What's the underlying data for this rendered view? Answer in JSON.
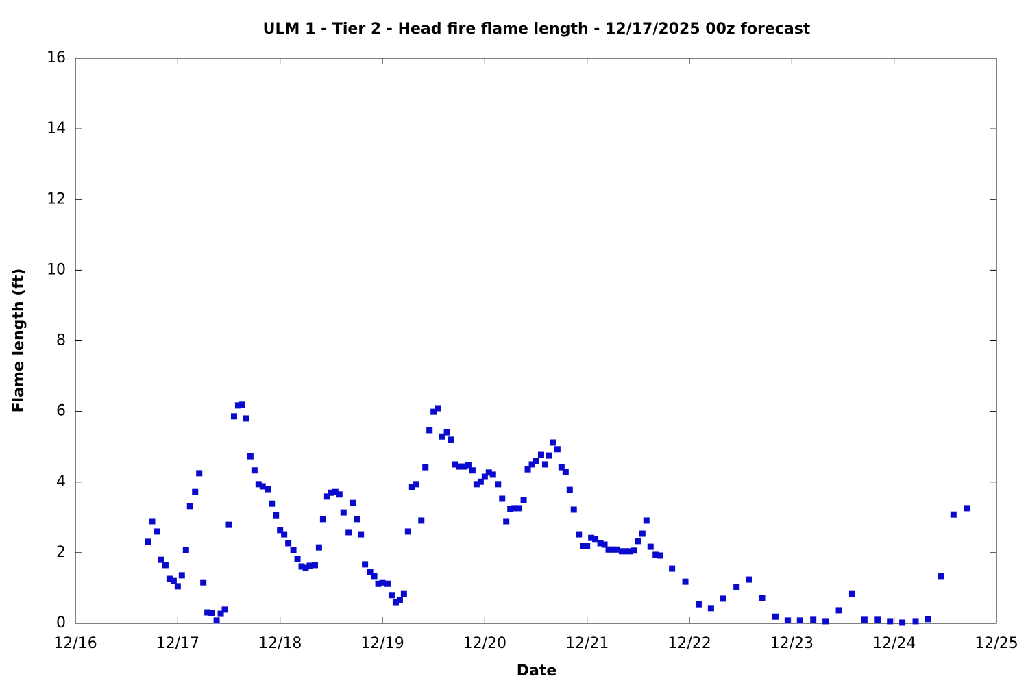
{
  "chart_data": {
    "type": "scatter",
    "title": "ULM 1 - Tier 2 - Head fire flame length - 12/17/2025 00z forecast",
    "x_label": "Date",
    "y_label": "Flame length (ft)",
    "color": "#0a0acd",
    "xlim": [
      16,
      25
    ],
    "xticks": [
      {
        "value": 16,
        "label": "12/16"
      },
      {
        "value": 17,
        "label": "12/17"
      },
      {
        "value": 18,
        "label": "12/18"
      },
      {
        "value": 19,
        "label": "12/19"
      },
      {
        "value": 20,
        "label": "12/20"
      },
      {
        "value": 21,
        "label": "12/21"
      },
      {
        "value": 22,
        "label": "12/22"
      },
      {
        "value": 23,
        "label": "12/23"
      },
      {
        "value": 24,
        "label": "12/24"
      },
      {
        "value": 25,
        "label": "12/25"
      }
    ],
    "ylim": [
      0,
      16
    ],
    "yticks": [
      0,
      2,
      4,
      6,
      8,
      10,
      12,
      14,
      16
    ],
    "x": [
      16.71,
      16.75,
      16.8,
      16.84,
      16.88,
      16.92,
      16.96,
      17.0,
      17.04,
      17.08,
      17.12,
      17.17,
      17.21,
      17.25,
      17.29,
      17.33,
      17.38,
      17.42,
      17.46,
      17.5,
      17.55,
      17.59,
      17.63,
      17.67,
      17.71,
      17.75,
      17.79,
      17.83,
      17.88,
      17.92,
      17.96,
      18.0,
      18.04,
      18.08,
      18.13,
      18.17,
      18.21,
      18.25,
      18.29,
      18.34,
      18.38,
      18.42,
      18.46,
      18.5,
      18.54,
      18.58,
      18.62,
      18.67,
      18.71,
      18.75,
      18.79,
      18.83,
      18.88,
      18.92,
      18.96,
      19.0,
      19.05,
      19.09,
      19.13,
      19.17,
      19.21,
      19.25,
      19.29,
      19.33,
      19.38,
      19.42,
      19.46,
      19.5,
      19.54,
      19.58,
      19.63,
      19.67,
      19.71,
      19.75,
      19.8,
      19.84,
      19.88,
      19.92,
      19.96,
      20.0,
      20.04,
      20.08,
      20.13,
      20.17,
      20.21,
      20.25,
      20.29,
      20.33,
      20.38,
      20.42,
      20.46,
      20.5,
      20.55,
      20.59,
      20.63,
      20.67,
      20.71,
      20.75,
      20.79,
      20.83,
      20.87,
      20.92,
      20.96,
      21.0,
      21.04,
      21.08,
      21.13,
      21.17,
      21.21,
      21.25,
      21.29,
      21.34,
      21.38,
      21.42,
      21.46,
      21.5,
      21.54,
      21.58,
      21.62,
      21.67,
      21.71,
      21.83,
      21.96,
      22.09,
      22.21,
      22.33,
      22.46,
      22.58,
      22.71,
      22.84,
      22.96,
      23.08,
      23.21,
      23.33,
      23.46,
      23.59,
      23.71,
      23.84,
      23.96,
      24.08,
      24.21,
      24.33,
      24.46,
      24.58,
      24.71
    ],
    "values": [
      2.31,
      2.89,
      2.6,
      1.8,
      1.65,
      1.26,
      1.2,
      1.05,
      1.36,
      2.08,
      3.32,
      3.72,
      4.25,
      1.16,
      0.31,
      0.29,
      0.08,
      0.27,
      0.39,
      2.79,
      5.86,
      6.17,
      6.19,
      5.8,
      4.73,
      4.33,
      3.94,
      3.88,
      3.8,
      3.39,
      3.06,
      2.64,
      2.52,
      2.27,
      2.08,
      1.82,
      1.61,
      1.57,
      1.63,
      1.65,
      2.15,
      2.95,
      3.59,
      3.7,
      3.72,
      3.65,
      3.14,
      2.58,
      3.41,
      2.95,
      2.52,
      1.67,
      1.45,
      1.34,
      1.12,
      1.16,
      1.12,
      0.8,
      0.6,
      0.66,
      0.83,
      2.6,
      3.86,
      3.94,
      2.91,
      4.42,
      5.47,
      5.99,
      6.09,
      5.29,
      5.41,
      5.2,
      4.5,
      4.44,
      4.44,
      4.48,
      4.33,
      3.94,
      4.01,
      4.15,
      4.27,
      4.21,
      3.94,
      3.53,
      2.89,
      3.24,
      3.26,
      3.26,
      3.49,
      4.36,
      4.5,
      4.6,
      4.77,
      4.5,
      4.75,
      5.12,
      4.93,
      4.42,
      4.29,
      3.78,
      3.22,
      2.52,
      2.19,
      2.19,
      2.42,
      2.39,
      2.27,
      2.23,
      2.09,
      2.09,
      2.09,
      2.04,
      2.04,
      2.04,
      2.06,
      2.33,
      2.54,
      2.91,
      2.17,
      1.94,
      1.92,
      1.55,
      1.18,
      0.54,
      0.43,
      0.7,
      1.03,
      1.24,
      0.72,
      0.19,
      0.08,
      0.08,
      0.1,
      0.06,
      0.37,
      0.83,
      0.1,
      0.1,
      0.06,
      0.02,
      0.06,
      0.12,
      1.34,
      3.08,
      3.26
    ]
  }
}
